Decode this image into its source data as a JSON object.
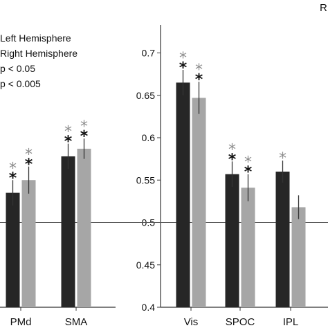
{
  "chart_data": {
    "type": "bar",
    "categories": [
      "PMd",
      "SMA",
      "Vis",
      "SPOC",
      "IPL"
    ],
    "series": [
      {
        "name": "Left Hemisphere",
        "values": [
          0.535,
          0.578,
          0.665,
          0.557,
          0.56
        ],
        "errors": [
          0.015,
          0.015,
          0.015,
          0.015,
          0.013
        ]
      },
      {
        "name": "Right Hemisphere",
        "values": [
          0.55,
          0.587,
          0.647,
          0.541,
          0.518
        ],
        "errors": [
          0.016,
          0.012,
          0.019,
          0.016,
          0.014
        ]
      }
    ],
    "significance": {
      "p05": [
        [
          true,
          true
        ],
        [
          true,
          true
        ],
        [
          true,
          true
        ],
        [
          true,
          true
        ],
        [
          true,
          false
        ]
      ],
      "p005": [
        [
          true,
          true
        ],
        [
          true,
          true
        ],
        [
          true,
          true
        ],
        [
          true,
          true
        ],
        [
          false,
          false
        ]
      ]
    },
    "legend_items": [
      "Left Hemisphere",
      "Right Hemisphere",
      "p < 0.05",
      "p < 0.005"
    ],
    "legend_placement": "top-left",
    "corner_text": "R",
    "xlabel": "",
    "ylabel": "",
    "ylim": [
      0.4,
      0.72
    ],
    "yticks": [
      "0.4",
      "0.45",
      "0.5",
      "0.55",
      "0.6",
      "0.65",
      "0.7"
    ],
    "reference_line": 0.5,
    "colors": {
      "left": "#262626",
      "right": "#a6a6a6",
      "star_p05": "#8c8c8c",
      "star_p005": "#111111",
      "axis": "#333333",
      "refline": "#555555"
    }
  }
}
